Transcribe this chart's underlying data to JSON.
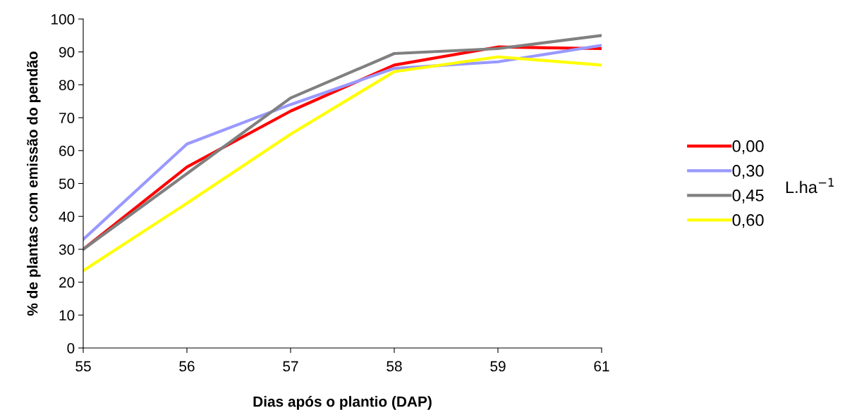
{
  "chart_data": {
    "type": "line",
    "xlabel": "Dias após o plantio (DAP)",
    "ylabel": "% de plantas com emissão do pendão",
    "legend_title": "L.ha$^{−1}$",
    "categories": [
      "55",
      "56",
      "57",
      "58",
      "59",
      "61"
    ],
    "series": [
      {
        "name": "0,00",
        "color": "#ff0000",
        "values": [
          30,
          55,
          72,
          86,
          91.5,
          91
        ]
      },
      {
        "name": "0,30",
        "color": "#9999ff",
        "values": [
          33,
          62,
          74,
          85,
          87,
          92
        ]
      },
      {
        "name": "0,45",
        "color": "#808080",
        "values": [
          30,
          53,
          76,
          89.5,
          91,
          95
        ]
      },
      {
        "name": "0,60",
        "color": "#ffff00",
        "values": [
          23.5,
          44,
          65,
          84,
          88.5,
          86
        ]
      }
    ],
    "ylim": [
      0,
      100
    ],
    "yticks": [
      0,
      10,
      20,
      30,
      40,
      50,
      60,
      70,
      80,
      90,
      100
    ],
    "grid": false,
    "legend": "right",
    "marker": "none",
    "line_style": "solid"
  }
}
